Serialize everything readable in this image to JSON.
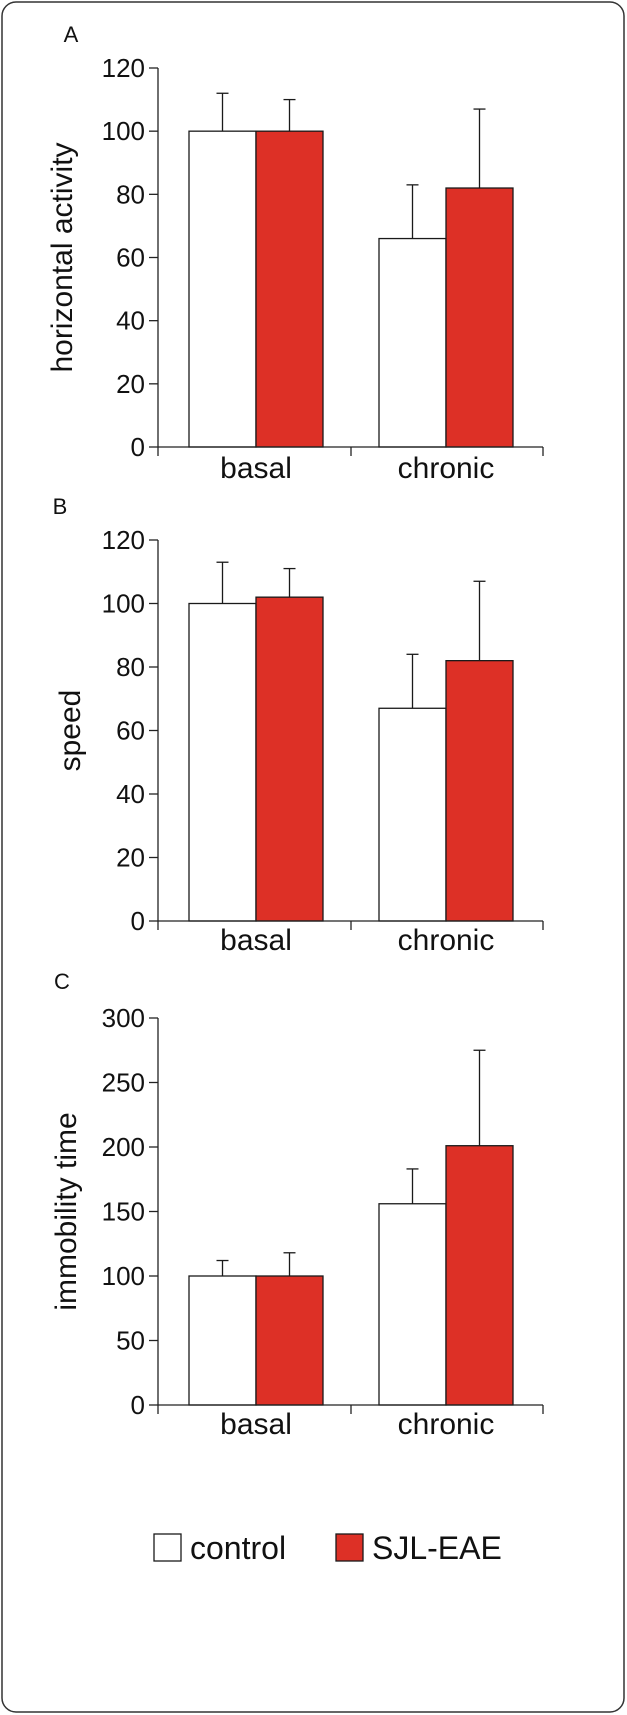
{
  "colors": {
    "control": "#ffffff",
    "sjl_eae": "#dd3026",
    "axis": "#222222"
  },
  "legend": [
    {
      "label": "control",
      "color": "#ffffff"
    },
    {
      "label": "SJL-EAE",
      "color": "#dd3026"
    }
  ],
  "chart_data": [
    {
      "type": "bar",
      "panel_label": "A",
      "ylabel": "horizontal activity",
      "categories": [
        "basal",
        "chronic"
      ],
      "ylim": [
        0,
        120
      ],
      "yticks": [
        0,
        20,
        40,
        60,
        80,
        100,
        120
      ],
      "series": [
        {
          "name": "control",
          "values": [
            100,
            66
          ],
          "errors": [
            12,
            17
          ]
        },
        {
          "name": "SJL-EAE",
          "values": [
            100,
            82
          ],
          "errors": [
            10,
            25
          ]
        }
      ]
    },
    {
      "type": "bar",
      "panel_label": "B",
      "ylabel": "speed",
      "categories": [
        "basal",
        "chronic"
      ],
      "ylim": [
        0,
        120
      ],
      "yticks": [
        0,
        20,
        40,
        60,
        80,
        100,
        120
      ],
      "series": [
        {
          "name": "control",
          "values": [
            100,
            67
          ],
          "errors": [
            13,
            17
          ]
        },
        {
          "name": "SJL-EAE",
          "values": [
            102,
            82
          ],
          "errors": [
            9,
            25
          ]
        }
      ]
    },
    {
      "type": "bar",
      "panel_label": "C",
      "ylabel": "immobility time",
      "categories": [
        "basal",
        "chronic"
      ],
      "ylim": [
        0,
        300
      ],
      "yticks": [
        0,
        50,
        100,
        150,
        200,
        250,
        300
      ],
      "series": [
        {
          "name": "control",
          "values": [
            100,
            156
          ],
          "errors": [
            12,
            27
          ]
        },
        {
          "name": "SJL-EAE",
          "values": [
            100,
            201
          ],
          "errors": [
            18,
            74
          ]
        }
      ]
    }
  ]
}
